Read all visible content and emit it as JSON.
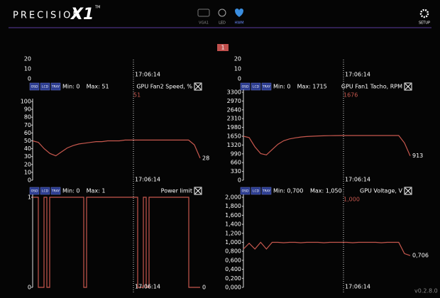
{
  "header": {
    "logo": "PRECISION",
    "logo_x1": "X1",
    "tm": "TM",
    "tabs": [
      "VGA1",
      "LED",
      "HWM"
    ],
    "setup": "SETUP"
  },
  "page_badge": "1",
  "overflow": [
    {
      "ticks": [
        "20",
        "10",
        "0"
      ],
      "timestamp": "17:06:14"
    },
    {
      "ticks": [
        "20",
        "10",
        "0"
      ],
      "timestamp": "17:06:14"
    }
  ],
  "panels": [
    {
      "icons": [
        "OSD",
        "LCD",
        "TRAY"
      ],
      "min": "Min: 0",
      "max": "Max: 51",
      "name": "GPU Fan2 Speed, %",
      "current_label": "51",
      "end_label": "28",
      "timestamp": "17:06:14",
      "color": "#c8584e",
      "ylim": [
        0,
        100
      ],
      "yticks": [
        100,
        90,
        80,
        70,
        60,
        50,
        40,
        30,
        20,
        10,
        0
      ],
      "values": [
        50,
        48,
        40,
        34,
        31,
        36,
        41,
        44,
        46,
        47,
        48,
        49,
        49,
        50,
        50,
        50,
        51,
        51,
        51,
        51,
        51,
        51,
        51,
        51,
        51,
        51,
        51,
        51,
        45,
        28
      ]
    },
    {
      "icons": [
        "OSD",
        "LCD",
        "TRAY"
      ],
      "min": "Min: 0",
      "max": "Max: 1715",
      "name": "GPU Fan1 Tacho, RPM",
      "current_label": "1676",
      "end_label": "913",
      "timestamp": "17:06:14",
      "color": "#c8584e",
      "ylim": [
        0,
        3300
      ],
      "yticks": [
        3300,
        2970,
        2640,
        2310,
        1980,
        1650,
        1320,
        990,
        660,
        330,
        0
      ],
      "values": [
        1650,
        1600,
        1250,
        1000,
        950,
        1150,
        1350,
        1480,
        1550,
        1590,
        1620,
        1640,
        1650,
        1660,
        1665,
        1670,
        1675,
        1676,
        1676,
        1676,
        1676,
        1676,
        1676,
        1676,
        1676,
        1676,
        1676,
        1676,
        1400,
        913
      ]
    },
    {
      "icons": [
        "OSD",
        "LCD",
        "TRAY"
      ],
      "min": "Min: 0",
      "max": "Max: 1",
      "name": "Power limit",
      "end_label": "0",
      "timestamp": "17:06:14",
      "color": "#c8584e",
      "ylim": [
        0,
        1
      ],
      "yticks": [
        1,
        0
      ],
      "values": [
        1,
        1,
        0,
        0,
        1,
        0,
        1,
        1,
        1,
        1,
        1,
        1,
        1,
        1,
        1,
        1,
        1,
        1,
        0,
        1,
        1,
        1,
        1,
        1,
        1,
        1,
        1,
        1,
        1,
        1,
        1,
        1,
        1,
        1,
        1,
        1,
        1,
        0,
        0,
        1,
        0,
        1,
        1,
        1,
        1,
        1,
        1,
        1,
        1,
        1,
        1,
        1,
        1,
        1,
        1,
        0,
        0,
        0,
        0,
        0
      ]
    },
    {
      "icons": [
        "OSD",
        "LCD",
        "TRAY"
      ],
      "min": "Min: 0,700",
      "max": "Max: 1,050",
      "name": "GPU Voltage, V",
      "current_label": "1,000",
      "end_label": "0,706",
      "timestamp": "17:06:14",
      "color": "#c8584e",
      "ylim": [
        0,
        2
      ],
      "yticks": [
        {
          "value": 2,
          "label": "2,000"
        },
        {
          "value": 1.8,
          "label": "1,800"
        },
        {
          "value": 1.6,
          "label": "1,600"
        },
        {
          "value": 1.4,
          "label": "1,400"
        },
        {
          "value": 1.2,
          "label": "1,200"
        },
        {
          "value": 1,
          "label": "1,000"
        },
        {
          "value": 0.8,
          "label": "0,800"
        },
        {
          "value": 0.6,
          "label": "0,600"
        },
        {
          "value": 0.4,
          "label": "0,400"
        },
        {
          "value": 0.2,
          "label": "0,200"
        },
        {
          "value": 0,
          "label": "0,000"
        }
      ],
      "values": [
        0.85,
        0.98,
        0.85,
        1.0,
        0.85,
        1.0,
        1.0,
        0.99,
        1.0,
        1.0,
        0.99,
        1.0,
        1.0,
        1.0,
        0.99,
        1.0,
        1.0,
        1.0,
        1.0,
        0.99,
        1.0,
        1.0,
        1.0,
        1.0,
        0.99,
        1.0,
        1.0,
        1.0,
        0.75,
        0.706
      ]
    }
  ],
  "version": "v0.2.8.0"
}
